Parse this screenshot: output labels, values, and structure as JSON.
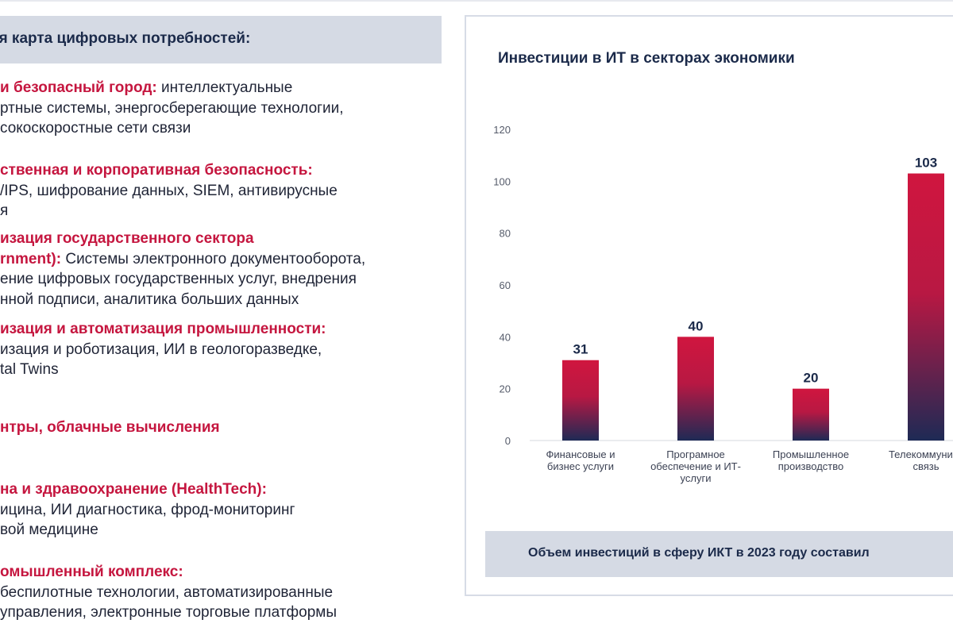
{
  "left": {
    "banner": "ая карта цифровых потребностей:",
    "items": [
      {
        "lines": [
          {
            "kind": "mixed",
            "head": "и безопасный город:",
            "text": " интеллектуальные"
          },
          {
            "kind": "text",
            "text": "ртные системы, энергосберегающие технологии,"
          },
          {
            "kind": "text",
            "text": "сокоскоростные сети связи"
          }
        ]
      },
      {
        "lines": [
          {
            "kind": "head",
            "text": "ственная и корпоративная безопасность:"
          },
          {
            "kind": "text",
            "text": "/IPS, шифрование данных, SIEM, антивирусные"
          },
          {
            "kind": "text",
            "text": "я"
          }
        ]
      },
      {
        "lines": [
          {
            "kind": "head",
            "text": "изация государственного сектора"
          },
          {
            "kind": "mixed",
            "head": "rnment):",
            "text": " Системы электронного документооборота,"
          },
          {
            "kind": "text",
            "text": "ение цифровых государственных услуг, внедрения"
          },
          {
            "kind": "text",
            "text": "нной подписи, аналитика больших данных"
          }
        ]
      },
      {
        "lines": [
          {
            "kind": "head",
            "text": "изация и автоматизация промышленности:"
          },
          {
            "kind": "text",
            "text": "изация и роботизация, ИИ в геологоразведке,"
          },
          {
            "kind": "text",
            "text": "tal Twins"
          }
        ]
      },
      {
        "lines": [
          {
            "kind": "head",
            "text": "нтры, облачные вычисления"
          }
        ]
      },
      {
        "lines": [
          {
            "kind": "head",
            "text": "на и здравоохранение (HealthTech):"
          },
          {
            "kind": "text",
            "text": "ицина, ИИ диагностика, фрод-мониторинг"
          },
          {
            "kind": "text",
            "text": "вой медицине"
          }
        ]
      },
      {
        "lines": [
          {
            "kind": "head",
            "text": "омышленный комплекс:"
          },
          {
            "kind": "text",
            "text": "беспилотные технологии, автоматизированные"
          },
          {
            "kind": "text",
            "text": "управления, электронные торговые платформы"
          }
        ]
      }
    ]
  },
  "chart_data": {
    "type": "bar",
    "title": "Инвестиции в ИТ в секторах экономики",
    "categories": [
      [
        "Финансовые и",
        "бизнес услуги"
      ],
      [
        "Програмное",
        "обеспечение и ИТ-",
        "услуги"
      ],
      [
        "Промышленное",
        "производство"
      ],
      [
        "Телекоммуника",
        "связь"
      ]
    ],
    "values": [
      31,
      40,
      20,
      103
    ],
    "ylim": [
      0,
      120
    ],
    "yticks": [
      0,
      20,
      40,
      60,
      80,
      100,
      120
    ],
    "grid": false,
    "legend": "none",
    "colors": {
      "top": "#d0163f",
      "bottom": "#1e2a55"
    }
  },
  "footer": {
    "text": "Объем инвестиций в сферу ИКТ в 2023 году составил"
  },
  "colors": {
    "accent_red": "#c5163f",
    "navy": "#1b2a4a",
    "banner_bg": "#d5dae4"
  }
}
